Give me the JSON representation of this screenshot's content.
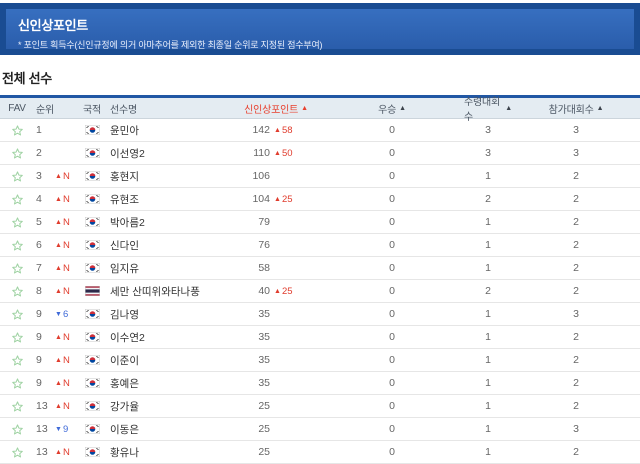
{
  "banner": {
    "title": "신인상포인트",
    "note": "* 포인트 획득수(신인규정에 의거 아마추어를 제외한 최종일 순위로 지정된 점수부여)"
  },
  "section": {
    "title": "전체 선수"
  },
  "table": {
    "columns": {
      "fav": "FAV",
      "rank": "순위",
      "nationality": "국적",
      "name": "선수명",
      "points": "신인상포인트",
      "wins": "우승",
      "prize_events": "수령대회수",
      "events": "참가대회수"
    },
    "sort_arrow": "▲",
    "sorted_column": "points",
    "rows": [
      {
        "rank": "1",
        "change_dir": "",
        "change_val": "",
        "flag": "kr",
        "name": "윤민아",
        "points": "142",
        "points_change": "58",
        "wins": "0",
        "prize_events": "3",
        "events": "3"
      },
      {
        "rank": "2",
        "change_dir": "",
        "change_val": "",
        "flag": "kr",
        "name": "이선영2",
        "points": "110",
        "points_change": "50",
        "wins": "0",
        "prize_events": "3",
        "events": "3"
      },
      {
        "rank": "3",
        "change_dir": "up",
        "change_val": "N",
        "flag": "kr",
        "name": "홍현지",
        "points": "106",
        "points_change": "",
        "wins": "0",
        "prize_events": "1",
        "events": "2"
      },
      {
        "rank": "4",
        "change_dir": "up",
        "change_val": "N",
        "flag": "kr",
        "name": "유현조",
        "points": "104",
        "points_change": "25",
        "wins": "0",
        "prize_events": "2",
        "events": "2"
      },
      {
        "rank": "5",
        "change_dir": "up",
        "change_val": "N",
        "flag": "kr",
        "name": "박아름2",
        "points": "79",
        "points_change": "",
        "wins": "0",
        "prize_events": "1",
        "events": "2"
      },
      {
        "rank": "6",
        "change_dir": "up",
        "change_val": "N",
        "flag": "kr",
        "name": "신다인",
        "points": "76",
        "points_change": "",
        "wins": "0",
        "prize_events": "1",
        "events": "2"
      },
      {
        "rank": "7",
        "change_dir": "up",
        "change_val": "N",
        "flag": "kr",
        "name": "임지유",
        "points": "58",
        "points_change": "",
        "wins": "0",
        "prize_events": "1",
        "events": "2"
      },
      {
        "rank": "8",
        "change_dir": "up",
        "change_val": "N",
        "flag": "th",
        "name": "세만 산띠위와타나풍",
        "points": "40",
        "points_change": "25",
        "wins": "0",
        "prize_events": "2",
        "events": "2"
      },
      {
        "rank": "9",
        "change_dir": "down",
        "change_val": "6",
        "flag": "kr",
        "name": "김나영",
        "points": "35",
        "points_change": "",
        "wins": "0",
        "prize_events": "1",
        "events": "3"
      },
      {
        "rank": "9",
        "change_dir": "up",
        "change_val": "N",
        "flag": "kr",
        "name": "이수연2",
        "points": "35",
        "points_change": "",
        "wins": "0",
        "prize_events": "1",
        "events": "2"
      },
      {
        "rank": "9",
        "change_dir": "up",
        "change_val": "N",
        "flag": "kr",
        "name": "이준이",
        "points": "35",
        "points_change": "",
        "wins": "0",
        "prize_events": "1",
        "events": "2"
      },
      {
        "rank": "9",
        "change_dir": "up",
        "change_val": "N",
        "flag": "kr",
        "name": "홍예은",
        "points": "35",
        "points_change": "",
        "wins": "0",
        "prize_events": "1",
        "events": "2"
      },
      {
        "rank": "13",
        "change_dir": "up",
        "change_val": "N",
        "flag": "kr",
        "name": "강가율",
        "points": "25",
        "points_change": "",
        "wins": "0",
        "prize_events": "1",
        "events": "2"
      },
      {
        "rank": "13",
        "change_dir": "down",
        "change_val": "9",
        "flag": "kr",
        "name": "이동은",
        "points": "25",
        "points_change": "",
        "wins": "0",
        "prize_events": "1",
        "events": "3"
      },
      {
        "rank": "13",
        "change_dir": "up",
        "change_val": "N",
        "flag": "kr",
        "name": "황유나",
        "points": "25",
        "points_change": "",
        "wins": "0",
        "prize_events": "1",
        "events": "2"
      }
    ]
  },
  "colors": {
    "up_red": "#e03c2d",
    "down_blue": "#3f6ad8",
    "sorted_header_red": "#e8402e",
    "banner_blue": "#2f68b6",
    "banner_border_blue": "#1a4c92",
    "table_top_border": "#2157a4",
    "favorite_green": "#9ed2a2"
  }
}
